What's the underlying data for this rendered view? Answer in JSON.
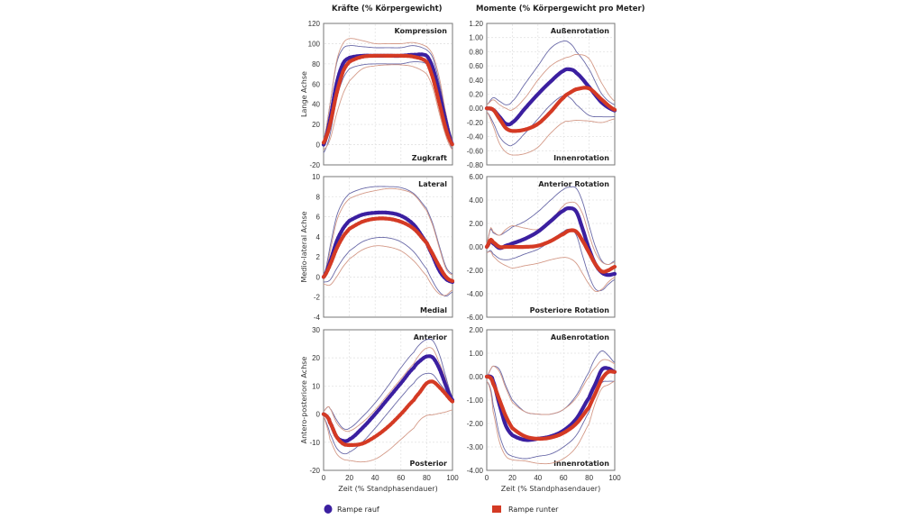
{
  "col_titles": {
    "left": "Kräfte (% Körpergewicht)",
    "right": "Momente (% Körpergewicht pro Meter)"
  },
  "legend": [
    {
      "label": "Rampe rauf",
      "color": "#3b1fa0",
      "shape": "circle"
    },
    {
      "label": "Rampe runter",
      "color": "#d43a24",
      "shape": "square"
    }
  ],
  "band_colors": {
    "rauf": "#6a6aa8",
    "runter": "#d49a88"
  },
  "chart_data": [
    {
      "type": "line",
      "id": "force-long",
      "ylabel": "Lange Achse",
      "xlabel": "",
      "top_label": "Kompression",
      "bottom_label": "Zugkraft",
      "ylim": [
        -20,
        120
      ],
      "yticks": [
        -20,
        0,
        20,
        40,
        60,
        80,
        100,
        120
      ],
      "ytick_labels": [
        "-20",
        "0",
        "20",
        "40",
        "60",
        "80",
        "100",
        "120"
      ],
      "xlim": [
        0,
        100
      ],
      "x": [
        0,
        5,
        10,
        15,
        20,
        30,
        40,
        50,
        60,
        70,
        80,
        85,
        90,
        95,
        100
      ],
      "series": [
        {
          "name": "Rampe rauf",
          "kind": "mean",
          "values": [
            0,
            25,
            60,
            80,
            86,
            88,
            88,
            88,
            88,
            89,
            88,
            75,
            50,
            22,
            0
          ]
        },
        {
          "name": "Rampe runter",
          "kind": "mean",
          "values": [
            2,
            20,
            50,
            72,
            82,
            87,
            88,
            88,
            88,
            87,
            82,
            65,
            40,
            15,
            0
          ]
        },
        {
          "name": "Rampe rauf",
          "kind": "upper",
          "values": [
            5,
            40,
            80,
            95,
            98,
            97,
            96,
            96,
            96,
            98,
            94,
            85,
            60,
            30,
            5
          ]
        },
        {
          "name": "Rampe rauf",
          "kind": "lower",
          "values": [
            -8,
            10,
            45,
            65,
            75,
            79,
            80,
            80,
            80,
            82,
            80,
            68,
            40,
            15,
            -5
          ]
        },
        {
          "name": "Rampe runter",
          "kind": "upper",
          "values": [
            5,
            40,
            82,
            100,
            105,
            103,
            100,
            100,
            100,
            101,
            97,
            88,
            65,
            30,
            5
          ]
        },
        {
          "name": "Rampe runter",
          "kind": "lower",
          "values": [
            -5,
            5,
            30,
            50,
            63,
            75,
            78,
            79,
            79,
            77,
            70,
            55,
            30,
            8,
            -5
          ]
        }
      ]
    },
    {
      "type": "line",
      "id": "moment-long",
      "ylabel": "",
      "xlabel": "",
      "top_label": "Außenrotation",
      "bottom_label": "Innenrotation",
      "ylim": [
        -0.8,
        1.2
      ],
      "yticks": [
        -0.8,
        -0.6,
        -0.4,
        -0.2,
        0,
        0.2,
        0.4,
        0.6,
        0.8,
        1.0,
        1.2
      ],
      "ytick_labels": [
        "-0.80",
        "-0.60",
        "-0.40",
        "-0.20",
        "0.00",
        "0.20",
        "0.40",
        "0.60",
        "0.80",
        "1.00",
        "1.20"
      ],
      "xlim": [
        0,
        100
      ],
      "x": [
        0,
        5,
        10,
        15,
        20,
        30,
        40,
        50,
        60,
        65,
        70,
        80,
        90,
        100
      ],
      "series": [
        {
          "name": "Rampe rauf",
          "kind": "mean",
          "values": [
            0,
            -0.02,
            -0.12,
            -0.22,
            -0.2,
            0.0,
            0.2,
            0.38,
            0.53,
            0.55,
            0.5,
            0.3,
            0.08,
            -0.03
          ]
        },
        {
          "name": "Rampe runter",
          "kind": "mean",
          "values": [
            0,
            -0.02,
            -0.15,
            -0.28,
            -0.32,
            -0.3,
            -0.22,
            -0.05,
            0.15,
            0.22,
            0.27,
            0.28,
            0.12,
            -0.02
          ]
        },
        {
          "name": "Rampe rauf",
          "kind": "upper",
          "values": [
            0.05,
            0.15,
            0.1,
            0.05,
            0.1,
            0.35,
            0.6,
            0.85,
            0.95,
            0.92,
            0.8,
            0.55,
            0.2,
            0.05
          ]
        },
        {
          "name": "Rampe rauf",
          "kind": "lower",
          "values": [
            -0.05,
            -0.2,
            -0.4,
            -0.5,
            -0.52,
            -0.35,
            -0.15,
            0.05,
            0.18,
            0.15,
            0.05,
            -0.1,
            -0.12,
            -0.12
          ]
        },
        {
          "name": "Rampe runter",
          "kind": "upper",
          "values": [
            0.05,
            0.12,
            0.05,
            0.0,
            -0.02,
            0.15,
            0.4,
            0.6,
            0.7,
            0.73,
            0.76,
            0.7,
            0.35,
            0.1
          ]
        },
        {
          "name": "Rampe runter",
          "kind": "lower",
          "values": [
            -0.05,
            -0.25,
            -0.5,
            -0.62,
            -0.66,
            -0.64,
            -0.55,
            -0.35,
            -0.2,
            -0.18,
            -0.17,
            -0.18,
            -0.2,
            -0.15
          ]
        }
      ]
    },
    {
      "type": "line",
      "id": "force-ml",
      "ylabel": "Medio-lateral Achse",
      "xlabel": "",
      "top_label": "Lateral",
      "bottom_label": "Medial",
      "ylim": [
        -4,
        10
      ],
      "yticks": [
        -4,
        -2,
        0,
        2,
        4,
        6,
        8,
        10
      ],
      "ytick_labels": [
        "-4",
        "-2",
        "0",
        "2",
        "4",
        "6",
        "8",
        "10"
      ],
      "xlim": [
        0,
        100
      ],
      "x": [
        0,
        5,
        10,
        15,
        20,
        30,
        40,
        50,
        60,
        70,
        80,
        85,
        90,
        95,
        100
      ],
      "series": [
        {
          "name": "Rampe rauf",
          "kind": "mean",
          "values": [
            0,
            1.5,
            3.5,
            4.8,
            5.6,
            6.2,
            6.4,
            6.4,
            6.1,
            5.2,
            3.4,
            2.0,
            0.6,
            -0.2,
            -0.5
          ]
        },
        {
          "name": "Rampe runter",
          "kind": "mean",
          "values": [
            0,
            1.2,
            2.8,
            4.0,
            4.8,
            5.5,
            5.8,
            5.8,
            5.5,
            4.8,
            3.4,
            2.2,
            1.0,
            0.0,
            -0.4
          ]
        },
        {
          "name": "Rampe rauf",
          "kind": "upper",
          "values": [
            0,
            3,
            6,
            7.5,
            8.3,
            8.8,
            9,
            9,
            8.9,
            8.3,
            6.8,
            5.2,
            3,
            1,
            0.3
          ]
        },
        {
          "name": "Rampe rauf",
          "kind": "lower",
          "values": [
            -0.5,
            -0.3,
            0.8,
            1.8,
            2.6,
            3.5,
            3.9,
            3.9,
            3.5,
            2.5,
            0.8,
            -0.5,
            -1.5,
            -1.9,
            -1.5
          ]
        },
        {
          "name": "Rampe runter",
          "kind": "upper",
          "values": [
            0,
            2.5,
            5.5,
            7,
            7.8,
            8.3,
            8.6,
            8.8,
            8.7,
            8.2,
            6.6,
            5,
            2.8,
            0.8,
            0.2
          ]
        },
        {
          "name": "Rampe runter",
          "kind": "lower",
          "values": [
            -0.7,
            -0.8,
            0.0,
            1.0,
            1.8,
            2.7,
            3.1,
            3.0,
            2.6,
            1.6,
            0.1,
            -1.0,
            -1.7,
            -1.8,
            -1.3
          ]
        }
      ]
    },
    {
      "type": "line",
      "id": "moment-ml",
      "ylabel": "",
      "xlabel": "",
      "top_label": "Anterior Rotation",
      "bottom_label": "Posteriore Rotation",
      "ylim": [
        -6,
        6
      ],
      "yticks": [
        -6,
        -4,
        -2,
        0,
        2,
        4,
        6
      ],
      "ytick_labels": [
        "-6.00",
        "-4.00",
        "-2.00",
        "0.00",
        "2.00",
        "4.00",
        "6.00"
      ],
      "xlim": [
        0,
        100
      ],
      "x": [
        0,
        3,
        5,
        10,
        15,
        20,
        30,
        40,
        50,
        60,
        65,
        70,
        75,
        80,
        85,
        90,
        95,
        100
      ],
      "series": [
        {
          "name": "Rampe rauf",
          "kind": "mean",
          "values": [
            0,
            0.5,
            0.3,
            -0.1,
            0.1,
            0.3,
            0.7,
            1.3,
            2.2,
            3.1,
            3.3,
            3.0,
            1.5,
            -0.2,
            -1.5,
            -2.2,
            -2.4,
            -2.3
          ]
        },
        {
          "name": "Rampe runter",
          "kind": "mean",
          "values": [
            0,
            0.6,
            0.4,
            0.0,
            0.0,
            0.0,
            0.0,
            0.1,
            0.5,
            1.1,
            1.4,
            1.3,
            0.5,
            -0.5,
            -1.5,
            -2.1,
            -2.0,
            -1.7
          ]
        },
        {
          "name": "Rampe rauf",
          "kind": "upper",
          "values": [
            0.3,
            1.5,
            1.2,
            1.0,
            1.3,
            1.7,
            2.2,
            3.0,
            4.0,
            4.9,
            5.1,
            5.0,
            3.8,
            1.8,
            0.0,
            -1.2,
            -1.5,
            -1.2
          ]
        },
        {
          "name": "Rampe rauf",
          "kind": "lower",
          "values": [
            -0.5,
            -0.3,
            -0.6,
            -1.0,
            -1.1,
            -1.0,
            -0.6,
            -0.2,
            0.5,
            1.3,
            1.5,
            1.0,
            -0.8,
            -2.5,
            -3.6,
            -3.7,
            -3.2,
            -2.8
          ]
        },
        {
          "name": "Rampe runter",
          "kind": "upper",
          "values": [
            0.3,
            1.6,
            1.3,
            1.0,
            1.5,
            1.8,
            1.6,
            1.5,
            2.2,
            3.5,
            3.8,
            3.7,
            2.8,
            1.0,
            -0.5,
            -1.3,
            -1.5,
            -1.3
          ]
        },
        {
          "name": "Rampe runter",
          "kind": "lower",
          "values": [
            -0.5,
            -0.4,
            -0.8,
            -1.3,
            -1.6,
            -1.8,
            -1.6,
            -1.4,
            -1.1,
            -0.9,
            -1.0,
            -1.4,
            -2.3,
            -3.2,
            -3.8,
            -3.6,
            -3.0,
            -2.6
          ]
        }
      ]
    },
    {
      "type": "line",
      "id": "force-ap",
      "ylabel": "Antero-posteriore Achse",
      "xlabel": "Zeit (% Standphasendauer)",
      "top_label": "Anterior",
      "bottom_label": "Posterior",
      "ylim": [
        -20,
        30
      ],
      "yticks": [
        -20,
        -10,
        0,
        10,
        20,
        30
      ],
      "ytick_labels": [
        "-20",
        "-10",
        "0",
        "10",
        "20",
        "30"
      ],
      "xlim": [
        0,
        100
      ],
      "xticks": [
        0,
        20,
        40,
        60,
        80,
        100
      ],
      "xtick_labels": [
        "0",
        "20",
        "40",
        "60",
        "80",
        "100"
      ],
      "x": [
        0,
        3,
        5,
        10,
        15,
        20,
        30,
        40,
        50,
        60,
        70,
        75,
        80,
        85,
        90,
        95,
        100
      ],
      "series": [
        {
          "name": "Rampe rauf",
          "kind": "mean",
          "values": [
            0,
            -1,
            -3,
            -8,
            -9.5,
            -9,
            -5,
            0,
            5.5,
            11,
            16.5,
            19,
            20.5,
            20,
            16,
            10,
            5
          ]
        },
        {
          "name": "Rampe runter",
          "kind": "mean",
          "values": [
            0,
            -1,
            -3,
            -8,
            -10.5,
            -11,
            -10.5,
            -8,
            -4.5,
            0,
            5,
            8,
            11,
            11.5,
            9.5,
            7,
            4.5
          ]
        },
        {
          "name": "Rampe rauf",
          "kind": "upper",
          "values": [
            1,
            2.5,
            2,
            -2,
            -5,
            -5,
            -1,
            4,
            10,
            16.5,
            22,
            25,
            26.5,
            26,
            21,
            13,
            6
          ]
        },
        {
          "name": "Rampe rauf",
          "kind": "lower",
          "values": [
            -1,
            -4,
            -7,
            -12,
            -14,
            -13.5,
            -10,
            -5,
            0.5,
            6,
            11,
            13.5,
            14.5,
            14,
            11,
            8,
            4
          ]
        },
        {
          "name": "Rampe runter",
          "kind": "upper",
          "values": [
            1,
            2.5,
            2,
            -3,
            -5.5,
            -6,
            -3,
            1.5,
            7,
            12.5,
            18,
            21.5,
            23.5,
            23,
            18,
            12,
            5
          ]
        },
        {
          "name": "Rampe runter",
          "kind": "lower",
          "values": [
            -1,
            -5,
            -9,
            -14,
            -16,
            -16.5,
            -17,
            -16,
            -13,
            -9,
            -5,
            -2,
            -0.5,
            -0.2,
            0.3,
            0.8,
            1.5
          ]
        }
      ]
    },
    {
      "type": "line",
      "id": "moment-ap",
      "ylabel": "",
      "xlabel": "Zeit (% Standphasendauer)",
      "top_label": "Außenrotation",
      "bottom_label": "Innenrotation",
      "ylim": [
        -4,
        2
      ],
      "yticks": [
        -4,
        -3,
        -2,
        -1,
        0,
        1,
        2
      ],
      "ytick_labels": [
        "-4.00",
        "-3.00",
        "-2.00",
        "-1.00",
        "0.00",
        "1.00",
        "2.00"
      ],
      "xlim": [
        0,
        100
      ],
      "xticks": [
        0,
        20,
        40,
        60,
        80,
        100
      ],
      "xtick_labels": [
        "0",
        "20",
        "40",
        "60",
        "80",
        "100"
      ],
      "x": [
        0,
        3,
        5,
        10,
        15,
        20,
        30,
        40,
        50,
        60,
        70,
        80,
        85,
        90,
        95,
        100
      ],
      "series": [
        {
          "name": "Rampe rauf",
          "kind": "mean",
          "values": [
            0,
            0,
            -0.2,
            -1.2,
            -2.1,
            -2.5,
            -2.7,
            -2.65,
            -2.55,
            -2.3,
            -1.8,
            -0.9,
            -0.3,
            0.3,
            0.35,
            0.2
          ]
        },
        {
          "name": "Rampe runter",
          "kind": "mean",
          "values": [
            0,
            -0.05,
            -0.3,
            -1.0,
            -1.7,
            -2.2,
            -2.55,
            -2.65,
            -2.6,
            -2.4,
            -2.0,
            -1.3,
            -0.7,
            -0.1,
            0.2,
            0.2
          ]
        },
        {
          "name": "Rampe rauf",
          "kind": "upper",
          "values": [
            0,
            0.3,
            0.45,
            0.3,
            -0.4,
            -1.0,
            -1.5,
            -1.6,
            -1.6,
            -1.4,
            -0.8,
            0.2,
            0.8,
            1.1,
            0.9,
            0.6
          ]
        },
        {
          "name": "Rampe rauf",
          "kind": "lower",
          "values": [
            -0.2,
            -0.5,
            -1.2,
            -2.5,
            -3.2,
            -3.4,
            -3.5,
            -3.4,
            -3.3,
            -3.0,
            -2.5,
            -1.5,
            -0.7,
            -0.25,
            -0.2,
            -0.2
          ]
        },
        {
          "name": "Rampe runter",
          "kind": "upper",
          "values": [
            0,
            0.3,
            0.45,
            0.2,
            -0.5,
            -1.1,
            -1.5,
            -1.6,
            -1.6,
            -1.4,
            -0.9,
            0.0,
            0.4,
            0.7,
            0.7,
            0.55
          ]
        },
        {
          "name": "Rampe runter",
          "kind": "lower",
          "values": [
            -0.2,
            -0.6,
            -1.5,
            -2.8,
            -3.4,
            -3.55,
            -3.6,
            -3.7,
            -3.7,
            -3.5,
            -3.0,
            -2.0,
            -1.1,
            -0.5,
            -0.35,
            -0.2
          ]
        }
      ]
    }
  ]
}
